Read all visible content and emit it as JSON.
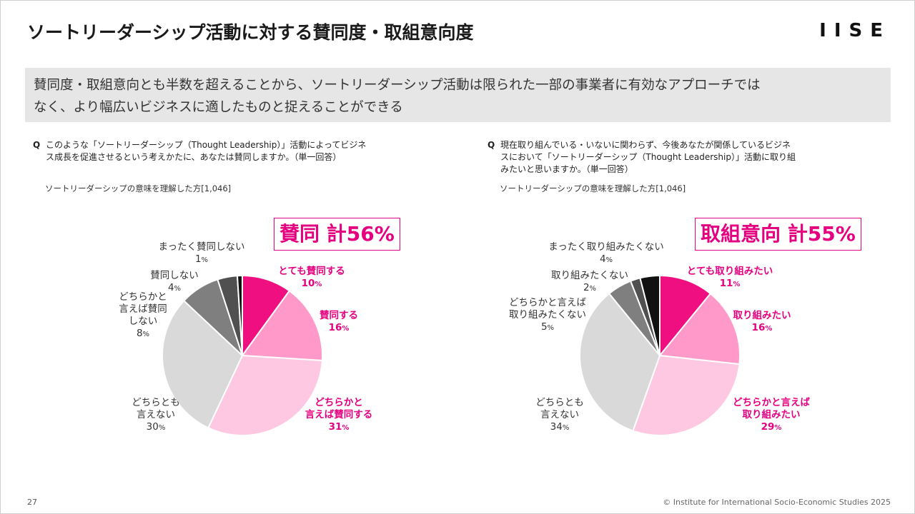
{
  "header": {
    "title": "ソートリーダーシップ活動に対する賛同度・取組意向度",
    "logo": "IISE"
  },
  "summary": {
    "line1": "賛同度・取組意向とも半数を超えることから、ソートリーダーシップ活動は限られた一部の事業者に有効なアプローチでは",
    "line2": "なく、より幅広いビジネスに適したものと捉えることができる"
  },
  "colors": {
    "accent": "#e5007f",
    "slice_1": "#f00f80",
    "slice_2": "#ff99c9",
    "slice_3": "#ffc8e2",
    "slice_4": "#d9d9d9",
    "slice_5": "#7f7f7f",
    "slice_6": "#505050",
    "slice_7": "#111111"
  },
  "footer": {
    "page_number": "27",
    "copyright": "© Institute for International Socio-Economic Studies 2025"
  },
  "charts": [
    {
      "question_mark": "Q",
      "question_line1": "このような「ソートリーダーシップ（Thought Leadership）」活動によってビジネ",
      "question_line2": "ス成長を促進させるという考えかたに、あなたは賛同しますか。（単一回答）",
      "question_line3": "",
      "base": "ソートリーダーシップの意味を理解した方[1,046]",
      "total": "賛同 計56%"
    },
    {
      "question_mark": "Q",
      "question_line1": "現在取り組んでいる・いないに関わらず、今後あなたが関係しているビジネ",
      "question_line2": "スにおいて「ソートリーダーシップ（Thought Leadership）」活動に取り組",
      "question_line3": "みたいと思いますか。（単一回答）",
      "base": "ソートリーダーシップの意味を理解した方[1,046]",
      "total": "取組意向 計55%"
    }
  ],
  "chart_data": [
    {
      "type": "pie",
      "title": "",
      "unit": "%",
      "slices": [
        {
          "label": "とても賛同する",
          "value": 10,
          "highlight": true
        },
        {
          "label": "賛同する",
          "value": 16,
          "highlight": true
        },
        {
          "label": "どちらかと言えば賛同する",
          "value": 31,
          "highlight": true
        },
        {
          "label": "どちらとも言えない",
          "value": 30,
          "highlight": false
        },
        {
          "label": "どちらかと言えば賛同しない",
          "value": 8,
          "highlight": false
        },
        {
          "label": "賛同しない",
          "value": 4,
          "highlight": false
        },
        {
          "label": "まったく賛同しない",
          "value": 1,
          "highlight": false
        }
      ],
      "slice_labels": [
        {
          "lines": [
            "とても賛同する"
          ],
          "pct": "10"
        },
        {
          "lines": [
            "賛同する"
          ],
          "pct": "16"
        },
        {
          "lines": [
            "どちらかと",
            "言えば賛同する"
          ],
          "pct": "31"
        },
        {
          "lines": [
            "どちらとも",
            "言えない"
          ],
          "pct": "30"
        },
        {
          "lines": [
            "どちらかと",
            "言えば賛同",
            "しない"
          ],
          "pct": "8"
        },
        {
          "lines": [
            "賛同しない"
          ],
          "pct": "4"
        },
        {
          "lines": [
            "まったく賛同しない"
          ],
          "pct": "1"
        }
      ]
    },
    {
      "type": "pie",
      "title": "",
      "unit": "%",
      "slices": [
        {
          "label": "とても取り組みたい",
          "value": 11,
          "highlight": true
        },
        {
          "label": "取り組みたい",
          "value": 16,
          "highlight": true
        },
        {
          "label": "どちらかと言えば取り組みたい",
          "value": 29,
          "highlight": true
        },
        {
          "label": "どちらとも言えない",
          "value": 34,
          "highlight": false
        },
        {
          "label": "どちらかと言えば取り組みたくない",
          "value": 5,
          "highlight": false
        },
        {
          "label": "取り組みたくない",
          "value": 2,
          "highlight": false
        },
        {
          "label": "まったく取り組みたくない",
          "value": 4,
          "highlight": false
        }
      ],
      "slice_labels": [
        {
          "lines": [
            "とても取り組みたい"
          ],
          "pct": "11"
        },
        {
          "lines": [
            "取り組みたい"
          ],
          "pct": "16"
        },
        {
          "lines": [
            "どちらかと言えば",
            "取り組みたい"
          ],
          "pct": "29"
        },
        {
          "lines": [
            "どちらとも",
            "言えない"
          ],
          "pct": "34"
        },
        {
          "lines": [
            "どちらかと言えば",
            "取り組みたくない"
          ],
          "pct": "5"
        },
        {
          "lines": [
            "取り組みたくない"
          ],
          "pct": "2"
        },
        {
          "lines": [
            "まったく取り組みたくない"
          ],
          "pct": "4"
        }
      ]
    }
  ]
}
